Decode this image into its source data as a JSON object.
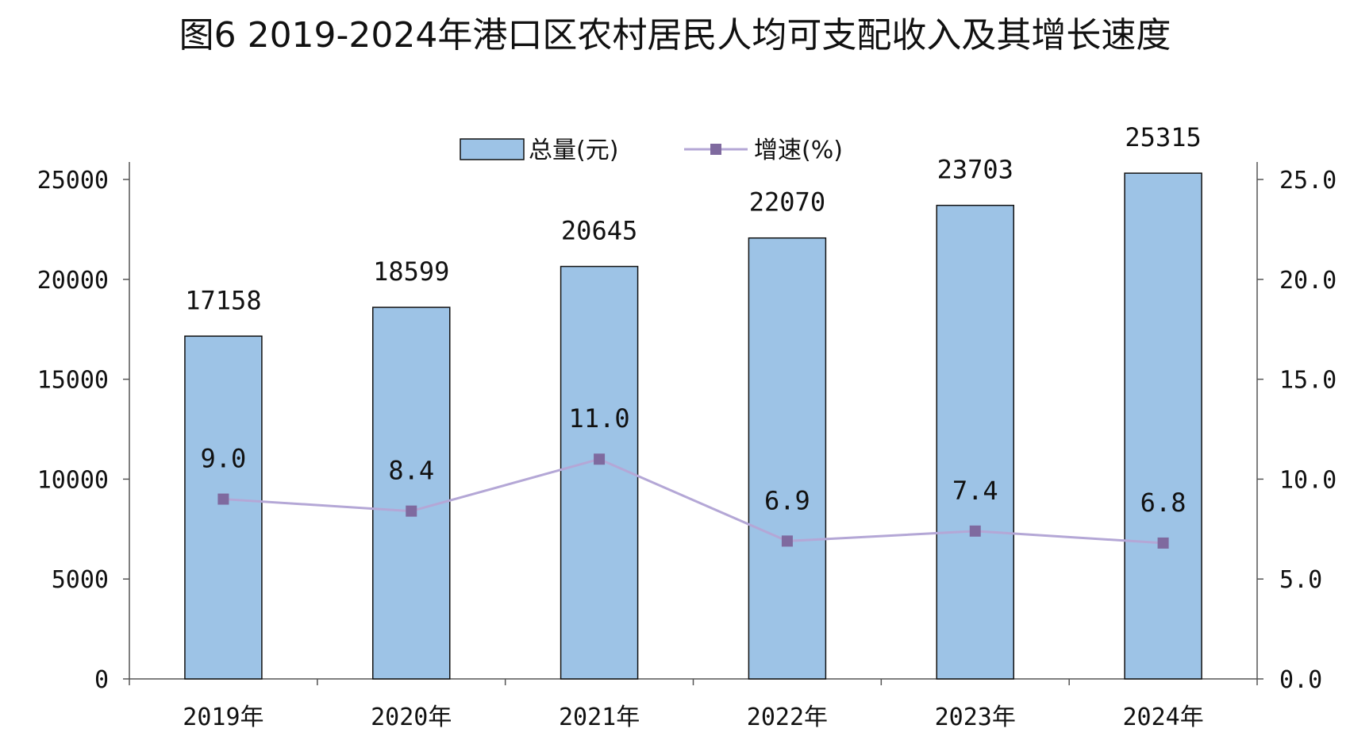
{
  "chart_data": {
    "type": "bar",
    "title": "图6   2019-2024年港口区农村居民人均可支配收入及其增长速度",
    "categories": [
      "2019年",
      "2020年",
      "2021年",
      "2022年",
      "2023年",
      "2024年"
    ],
    "series": [
      {
        "name": "总量(元)",
        "type": "bar",
        "axis": "left",
        "values": [
          17158,
          18599,
          20645,
          22070,
          23703,
          25315
        ],
        "labels": [
          "17158",
          "18599",
          "20645",
          "22070",
          "23703",
          "25315"
        ]
      },
      {
        "name": "增速(%)",
        "type": "line",
        "axis": "right",
        "values": [
          9.0,
          8.4,
          11.0,
          6.9,
          7.4,
          6.8
        ],
        "labels": [
          "9.0",
          "8.4",
          "11.0",
          "6.9",
          "7.4",
          "6.8"
        ]
      }
    ],
    "left_axis": {
      "ylim": [
        0,
        25000
      ],
      "ticks": [
        "0",
        "5000",
        "10000",
        "15000",
        "20000",
        "25000"
      ]
    },
    "right_axis": {
      "ylim": [
        0,
        25
      ],
      "ticks": [
        "0.0",
        "5.0",
        "10.0",
        "15.0",
        "20.0",
        "25.0"
      ]
    },
    "legend_position": "top-center",
    "grid": false,
    "colors": {
      "bar_fill": "#9dc3e6",
      "bar_stroke": "#111111",
      "line": "#b4a7d6",
      "marker": "#7f6a9f",
      "axis": "#555555"
    }
  }
}
